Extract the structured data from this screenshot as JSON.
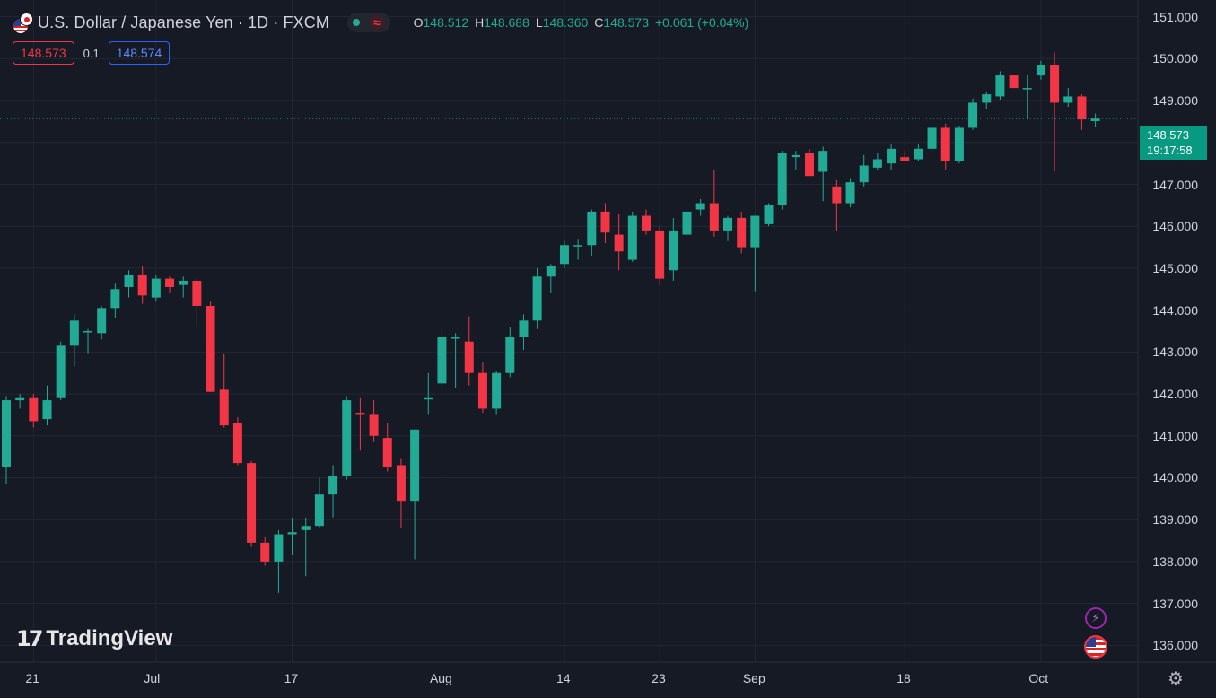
{
  "header": {
    "symbol": "U.S. Dollar / Japanese Yen · 1D · FXCM",
    "wave_glyph": "≈",
    "ohlc": {
      "o_label": "O",
      "o": "148.512",
      "h_label": "H",
      "h": "148.688",
      "l_label": "L",
      "l": "148.360",
      "c_label": "C",
      "c": "148.573",
      "change": "+0.061 (+0.04%)"
    }
  },
  "trade": {
    "sell": "148.573",
    "spread": "0.1",
    "buy": "148.574"
  },
  "price_scale": {
    "labels": [
      "151.000",
      "150.000",
      "149.000",
      "148.000",
      "147.000",
      "146.000",
      "145.000",
      "144.000",
      "143.000",
      "142.000",
      "141.000",
      "140.000",
      "139.000",
      "138.000",
      "137.000",
      "136.000"
    ]
  },
  "time_scale": {
    "labels": [
      "21",
      "Jul",
      "17",
      "Aug",
      "14",
      "23",
      "Sep",
      "18",
      "Oct"
    ]
  },
  "current": {
    "price": "148.573",
    "countdown": "19:17:58"
  },
  "branding": {
    "logo_mark": "17",
    "logo_text": "TradingView"
  },
  "icons": {
    "bolt": "lightning-icon",
    "flag": "us-flag-icon",
    "settings": "gear-icon",
    "bolt_glyph": "⚡",
    "gear_glyph": "⚙"
  },
  "colors": {
    "up": "#22ab94",
    "down": "#f23645",
    "background": "#161a25",
    "grid": "#232733",
    "current_line": "#22ab94"
  },
  "chart_data": {
    "type": "candlestick",
    "ylim": [
      135.6,
      151.4
    ],
    "grid": true,
    "candles": [
      {
        "x": 0,
        "o": 140.25,
        "h": 141.95,
        "l": 139.85,
        "c": 141.85
      },
      {
        "x": 1,
        "o": 141.85,
        "h": 142.0,
        "l": 141.65,
        "c": 141.9
      },
      {
        "x": 2,
        "o": 141.9,
        "h": 142.0,
        "l": 141.2,
        "c": 141.35
      },
      {
        "x": 3,
        "o": 141.4,
        "h": 142.2,
        "l": 141.25,
        "c": 141.85
      },
      {
        "x": 4,
        "o": 141.9,
        "h": 143.25,
        "l": 141.85,
        "c": 143.15
      },
      {
        "x": 5,
        "o": 143.15,
        "h": 143.9,
        "l": 142.65,
        "c": 143.75
      },
      {
        "x": 6,
        "o": 143.5,
        "h": 143.55,
        "l": 142.95,
        "c": 143.5
      },
      {
        "x": 7,
        "o": 143.45,
        "h": 144.1,
        "l": 143.3,
        "c": 144.05
      },
      {
        "x": 8,
        "o": 144.05,
        "h": 144.65,
        "l": 143.8,
        "c": 144.5
      },
      {
        "x": 9,
        "o": 144.55,
        "h": 144.95,
        "l": 144.3,
        "c": 144.85
      },
      {
        "x": 10,
        "o": 144.85,
        "h": 145.05,
        "l": 144.15,
        "c": 144.35
      },
      {
        "x": 11,
        "o": 144.3,
        "h": 144.85,
        "l": 144.2,
        "c": 144.75
      },
      {
        "x": 12,
        "o": 144.75,
        "h": 144.8,
        "l": 144.4,
        "c": 144.55
      },
      {
        "x": 13,
        "o": 144.6,
        "h": 144.8,
        "l": 144.3,
        "c": 144.7
      },
      {
        "x": 14,
        "o": 144.7,
        "h": 144.75,
        "l": 143.6,
        "c": 144.1
      },
      {
        "x": 15,
        "o": 144.1,
        "h": 144.2,
        "l": 142.1,
        "c": 142.05
      },
      {
        "x": 16,
        "o": 142.1,
        "h": 142.95,
        "l": 141.2,
        "c": 141.25
      },
      {
        "x": 17,
        "o": 141.3,
        "h": 141.45,
        "l": 140.3,
        "c": 140.35
      },
      {
        "x": 18,
        "o": 140.35,
        "h": 140.4,
        "l": 138.35,
        "c": 138.45
      },
      {
        "x": 19,
        "o": 138.45,
        "h": 138.6,
        "l": 137.9,
        "c": 138.0
      },
      {
        "x": 20,
        "o": 138.0,
        "h": 138.75,
        "l": 137.25,
        "c": 138.65
      },
      {
        "x": 21,
        "o": 138.65,
        "h": 139.05,
        "l": 138.15,
        "c": 138.7
      },
      {
        "x": 22,
        "o": 138.75,
        "h": 139.05,
        "l": 137.65,
        "c": 138.85
      },
      {
        "x": 23,
        "o": 138.85,
        "h": 140.0,
        "l": 138.8,
        "c": 139.6
      },
      {
        "x": 24,
        "o": 139.6,
        "h": 140.3,
        "l": 139.05,
        "c": 140.05
      },
      {
        "x": 25,
        "o": 140.05,
        "h": 141.95,
        "l": 139.95,
        "c": 141.85
      },
      {
        "x": 26,
        "o": 141.55,
        "h": 141.9,
        "l": 140.65,
        "c": 141.5
      },
      {
        "x": 27,
        "o": 141.5,
        "h": 141.85,
        "l": 140.85,
        "c": 141.0
      },
      {
        "x": 28,
        "o": 140.95,
        "h": 141.3,
        "l": 140.15,
        "c": 140.25
      },
      {
        "x": 29,
        "o": 140.3,
        "h": 140.45,
        "l": 138.8,
        "c": 139.45
      },
      {
        "x": 30,
        "o": 139.45,
        "h": 141.15,
        "l": 138.05,
        "c": 141.15
      },
      {
        "x": 31,
        "o": 141.9,
        "h": 142.5,
        "l": 141.5,
        "c": 141.9
      },
      {
        "x": 32,
        "o": 142.25,
        "h": 143.55,
        "l": 142.1,
        "c": 143.35
      },
      {
        "x": 33,
        "o": 143.35,
        "h": 143.45,
        "l": 142.15,
        "c": 143.35
      },
      {
        "x": 34,
        "o": 143.25,
        "h": 143.85,
        "l": 142.2,
        "c": 142.5
      },
      {
        "x": 35,
        "o": 142.5,
        "h": 142.75,
        "l": 141.55,
        "c": 141.65
      },
      {
        "x": 36,
        "o": 141.65,
        "h": 142.55,
        "l": 141.5,
        "c": 142.5
      },
      {
        "x": 37,
        "o": 142.5,
        "h": 143.6,
        "l": 142.4,
        "c": 143.35
      },
      {
        "x": 38,
        "o": 143.35,
        "h": 143.9,
        "l": 143.05,
        "c": 143.75
      },
      {
        "x": 39,
        "o": 143.75,
        "h": 145.0,
        "l": 143.55,
        "c": 144.8
      },
      {
        "x": 40,
        "o": 144.8,
        "h": 145.1,
        "l": 144.4,
        "c": 145.05
      },
      {
        "x": 41,
        "o": 145.1,
        "h": 145.65,
        "l": 145.0,
        "c": 145.55
      },
      {
        "x": 42,
        "o": 145.55,
        "h": 145.7,
        "l": 145.2,
        "c": 145.55
      },
      {
        "x": 43,
        "o": 145.55,
        "h": 146.4,
        "l": 145.3,
        "c": 146.35
      },
      {
        "x": 44,
        "o": 146.35,
        "h": 146.55,
        "l": 145.6,
        "c": 145.85
      },
      {
        "x": 45,
        "o": 145.8,
        "h": 146.3,
        "l": 144.95,
        "c": 145.4
      },
      {
        "x": 46,
        "o": 145.2,
        "h": 146.35,
        "l": 145.15,
        "c": 146.25
      },
      {
        "x": 47,
        "o": 146.25,
        "h": 146.4,
        "l": 145.8,
        "c": 145.9
      },
      {
        "x": 48,
        "o": 145.9,
        "h": 146.0,
        "l": 144.6,
        "c": 144.75
      },
      {
        "x": 49,
        "o": 144.95,
        "h": 146.2,
        "l": 144.7,
        "c": 145.9
      },
      {
        "x": 50,
        "o": 145.8,
        "h": 146.55,
        "l": 145.75,
        "c": 146.35
      },
      {
        "x": 51,
        "o": 146.4,
        "h": 146.65,
        "l": 146.25,
        "c": 146.55
      },
      {
        "x": 52,
        "o": 146.55,
        "h": 147.35,
        "l": 145.75,
        "c": 145.9
      },
      {
        "x": 53,
        "o": 145.9,
        "h": 146.25,
        "l": 145.65,
        "c": 146.2
      },
      {
        "x": 54,
        "o": 146.2,
        "h": 146.35,
        "l": 145.35,
        "c": 145.5
      },
      {
        "x": 55,
        "o": 145.5,
        "h": 146.25,
        "l": 144.45,
        "c": 146.25
      },
      {
        "x": 56,
        "o": 146.05,
        "h": 146.55,
        "l": 146.0,
        "c": 146.5
      },
      {
        "x": 57,
        "o": 146.5,
        "h": 147.8,
        "l": 146.4,
        "c": 147.75
      },
      {
        "x": 58,
        "o": 147.65,
        "h": 147.8,
        "l": 147.35,
        "c": 147.7
      },
      {
        "x": 59,
        "o": 147.75,
        "h": 147.85,
        "l": 147.2,
        "c": 147.2
      },
      {
        "x": 60,
        "o": 147.3,
        "h": 147.9,
        "l": 146.6,
        "c": 147.8
      },
      {
        "x": 61,
        "o": 146.95,
        "h": 147.1,
        "l": 145.9,
        "c": 146.55
      },
      {
        "x": 62,
        "o": 146.55,
        "h": 147.15,
        "l": 146.45,
        "c": 147.05
      },
      {
        "x": 63,
        "o": 147.05,
        "h": 147.7,
        "l": 146.95,
        "c": 147.45
      },
      {
        "x": 64,
        "o": 147.4,
        "h": 147.75,
        "l": 147.35,
        "c": 147.6
      },
      {
        "x": 65,
        "o": 147.5,
        "h": 147.95,
        "l": 147.35,
        "c": 147.85
      },
      {
        "x": 66,
        "o": 147.65,
        "h": 147.8,
        "l": 147.55,
        "c": 147.55
      },
      {
        "x": 67,
        "o": 147.6,
        "h": 147.95,
        "l": 147.55,
        "c": 147.85
      },
      {
        "x": 68,
        "o": 147.85,
        "h": 148.35,
        "l": 147.75,
        "c": 148.35
      },
      {
        "x": 69,
        "o": 148.35,
        "h": 148.45,
        "l": 147.35,
        "c": 147.55
      },
      {
        "x": 70,
        "o": 147.55,
        "h": 148.4,
        "l": 147.5,
        "c": 148.35
      },
      {
        "x": 71,
        "o": 148.35,
        "h": 149.05,
        "l": 148.3,
        "c": 148.95
      },
      {
        "x": 72,
        "o": 148.95,
        "h": 149.2,
        "l": 148.8,
        "c": 149.15
      },
      {
        "x": 73,
        "o": 149.1,
        "h": 149.7,
        "l": 149.0,
        "c": 149.6
      },
      {
        "x": 74,
        "o": 149.6,
        "h": 149.6,
        "l": 149.3,
        "c": 149.3
      },
      {
        "x": 75,
        "o": 149.3,
        "h": 149.6,
        "l": 148.55,
        "c": 149.3
      },
      {
        "x": 76,
        "o": 149.6,
        "h": 149.95,
        "l": 149.5,
        "c": 149.85
      },
      {
        "x": 77,
        "o": 149.85,
        "h": 150.15,
        "l": 147.3,
        "c": 148.95
      },
      {
        "x": 78,
        "o": 148.95,
        "h": 149.3,
        "l": 148.85,
        "c": 149.1
      },
      {
        "x": 79,
        "o": 149.1,
        "h": 149.15,
        "l": 148.3,
        "c": 148.55
      },
      {
        "x": 80,
        "o": 148.51,
        "h": 148.69,
        "l": 148.36,
        "c": 148.57
      }
    ]
  }
}
